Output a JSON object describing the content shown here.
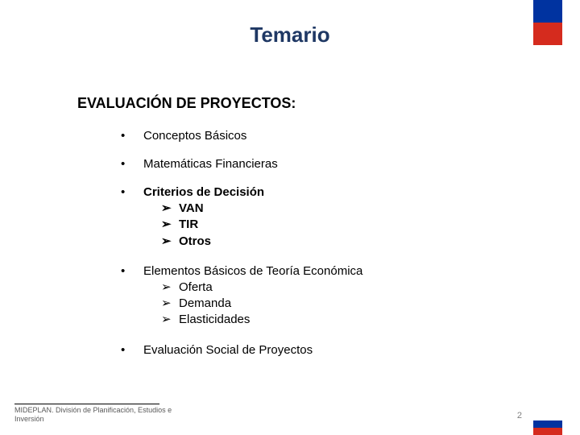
{
  "colors": {
    "title": "#1f3864",
    "text": "#000000",
    "footer": "#595959",
    "pagenum": "#7f7f7f",
    "flag_blue": "#0033a0",
    "flag_red": "#d52b1e",
    "flag_white": "#ffffff"
  },
  "fonts": {
    "title_size": 26,
    "heading_size": 18,
    "body_size": 15,
    "footer_size": 9,
    "pagenum_size": 11
  },
  "title": "Temario",
  "section_heading": "EVALUACIÓN DE PROYECTOS:",
  "items": [
    {
      "label": "Conceptos Básicos",
      "bold": false,
      "sub": []
    },
    {
      "label": "Matemáticas Financieras",
      "bold": false,
      "sub": []
    },
    {
      "label": "Criterios de Decisión",
      "bold": true,
      "sub": [
        "VAN",
        "TIR",
        "Otros"
      ]
    },
    {
      "label": "Elementos Básicos de Teoría Económica",
      "bold": false,
      "sub": [
        "Oferta",
        "Demanda",
        "Elasticidades"
      ]
    },
    {
      "label": "Evaluación Social de Proyectos",
      "bold": false,
      "sub": []
    }
  ],
  "bullet_mark": "•",
  "sub_mark": "➢",
  "footer": "MIDEPLAN. División de Planificación, Estudios e Inversión",
  "page_number": "2"
}
